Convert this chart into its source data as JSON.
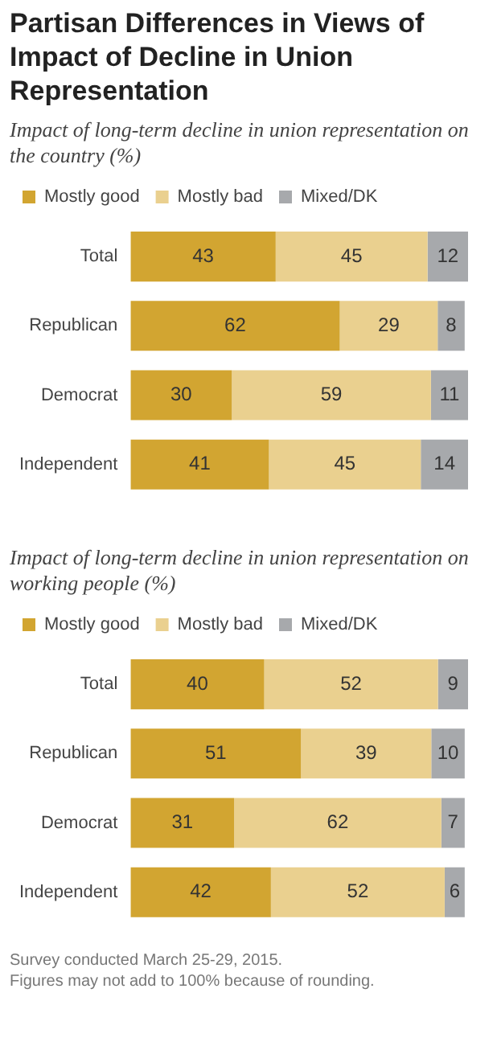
{
  "chart_data": [
    {
      "type": "bar",
      "title": "Partisan Differences in Views of Impact of Decline in Union Representation",
      "subtitle": "Impact of long-term decline in union representation on the country (%)",
      "orientation": "horizontal",
      "stacked": true,
      "categories": [
        "Total",
        "Republican",
        "Democrat",
        "Independent"
      ],
      "series": [
        {
          "name": "Mostly good",
          "color": "#d2a531",
          "values": [
            43,
            62,
            30,
            41
          ]
        },
        {
          "name": "Mostly bad",
          "color": "#ead08f",
          "values": [
            45,
            29,
            59,
            45
          ]
        },
        {
          "name": "Mixed/DK",
          "color": "#a7a9ac",
          "values": [
            12,
            8,
            11,
            14
          ]
        }
      ],
      "xlim": [
        0,
        100
      ],
      "tick_labels": "y",
      "data_labels": true,
      "legend": "top left",
      "grid": false
    },
    {
      "type": "bar",
      "subtitle": "Impact of long-term decline in union representation on working people (%)",
      "orientation": "horizontal",
      "stacked": true,
      "categories": [
        "Total",
        "Republican",
        "Democrat",
        "Independent"
      ],
      "series": [
        {
          "name": "Mostly good",
          "color": "#d2a531",
          "values": [
            40,
            51,
            31,
            42
          ]
        },
        {
          "name": "Mostly bad",
          "color": "#ead08f",
          "values": [
            52,
            39,
            62,
            52
          ]
        },
        {
          "name": "Mixed/DK",
          "color": "#a7a9ac",
          "values": [
            9,
            10,
            7,
            6
          ]
        }
      ],
      "xlim": [
        0,
        101
      ],
      "tick_labels": "y",
      "data_labels": true,
      "legend": "top left",
      "grid": false,
      "annotations": [
        "Survey conducted March 25-29, 2015.",
        "Figures may not add to 100% because of rounding."
      ]
    }
  ]
}
